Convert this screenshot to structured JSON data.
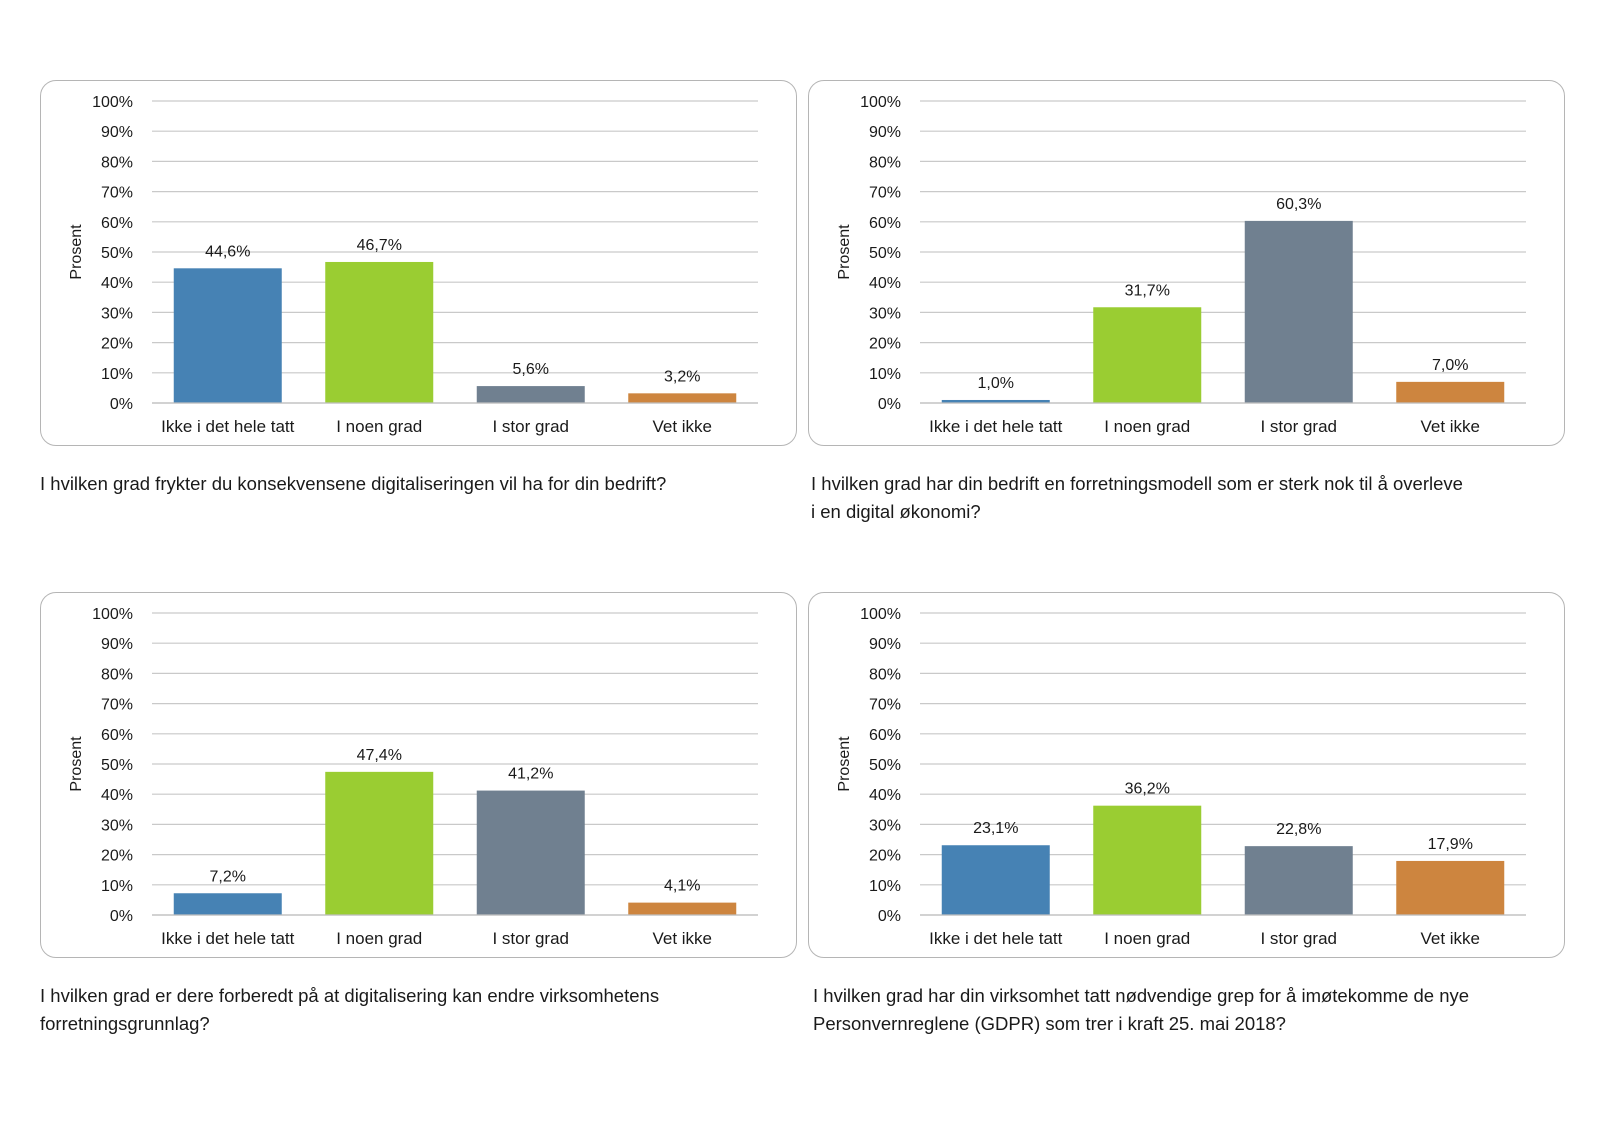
{
  "chart_data": [
    {
      "type": "bar",
      "title": "",
      "ylabel": "Prosent",
      "xlabel": "",
      "ylim": [
        0,
        100
      ],
      "yticks": [
        "0%",
        "10%",
        "20%",
        "30%",
        "40%",
        "50%",
        "60%",
        "70%",
        "80%",
        "90%",
        "100%"
      ],
      "grid": true,
      "categories": [
        "Ikke i det hele tatt",
        "I noen grad",
        "I stor grad",
        "Vet ikke"
      ],
      "values": [
        44.6,
        46.7,
        5.6,
        3.2
      ],
      "value_labels": [
        "44,6%",
        "46,7%",
        "5,6%",
        "3,2%"
      ],
      "colors": [
        "#4682b4",
        "#9acd32",
        "#708090",
        "#cd853f"
      ],
      "caption": "I hvilken grad frykter du konsekvensene digitaliseringen vil ha for din bedrift?"
    },
    {
      "type": "bar",
      "title": "",
      "ylabel": "Prosent",
      "xlabel": "",
      "ylim": [
        0,
        100
      ],
      "yticks": [
        "0%",
        "10%",
        "20%",
        "30%",
        "40%",
        "50%",
        "60%",
        "70%",
        "80%",
        "90%",
        "100%"
      ],
      "grid": true,
      "categories": [
        "Ikke i det hele tatt",
        "I noen grad",
        "I stor grad",
        "Vet ikke"
      ],
      "values": [
        1.0,
        31.7,
        60.3,
        7.0
      ],
      "value_labels": [
        "1,0%",
        "31,7%",
        "60,3%",
        "7,0%"
      ],
      "colors": [
        "#4682b4",
        "#9acd32",
        "#708090",
        "#cd853f"
      ],
      "caption": "I hvilken grad har din bedrift en forretningsmodell som er sterk nok til å overleve\ni en digital økonomi?"
    },
    {
      "type": "bar",
      "title": "",
      "ylabel": "Prosent",
      "xlabel": "",
      "ylim": [
        0,
        100
      ],
      "yticks": [
        "0%",
        "10%",
        "20%",
        "30%",
        "40%",
        "50%",
        "60%",
        "70%",
        "80%",
        "90%",
        "100%"
      ],
      "grid": true,
      "categories": [
        "Ikke i det hele tatt",
        "I noen grad",
        "I stor grad",
        "Vet ikke"
      ],
      "values": [
        7.2,
        47.4,
        41.2,
        4.1
      ],
      "value_labels": [
        "7,2%",
        "47,4%",
        "41,2%",
        "4,1%"
      ],
      "colors": [
        "#4682b4",
        "#9acd32",
        "#708090",
        "#cd853f"
      ],
      "caption": "I hvilken grad er dere forberedt på at digitalisering kan endre virksomhetens\nforretningsgrunnlag?"
    },
    {
      "type": "bar",
      "title": "",
      "ylabel": "Prosent",
      "xlabel": "",
      "ylim": [
        0,
        100
      ],
      "yticks": [
        "0%",
        "10%",
        "20%",
        "30%",
        "40%",
        "50%",
        "60%",
        "70%",
        "80%",
        "90%",
        "100%"
      ],
      "grid": true,
      "categories": [
        "Ikke i det hele tatt",
        "I noen grad",
        "I stor grad",
        "Vet ikke"
      ],
      "values": [
        23.1,
        36.2,
        22.8,
        17.9
      ],
      "value_labels": [
        "23,1%",
        "36,2%",
        "22,8%",
        "17,9%"
      ],
      "colors": [
        "#4682b4",
        "#9acd32",
        "#708090",
        "#cd853f"
      ],
      "caption": "I hvilken grad har din virksomhet tatt nødvendige grep for å imøtekomme de nye\nPersonvernreglene (GDPR) som trer i kraft 25. mai 2018?"
    }
  ]
}
